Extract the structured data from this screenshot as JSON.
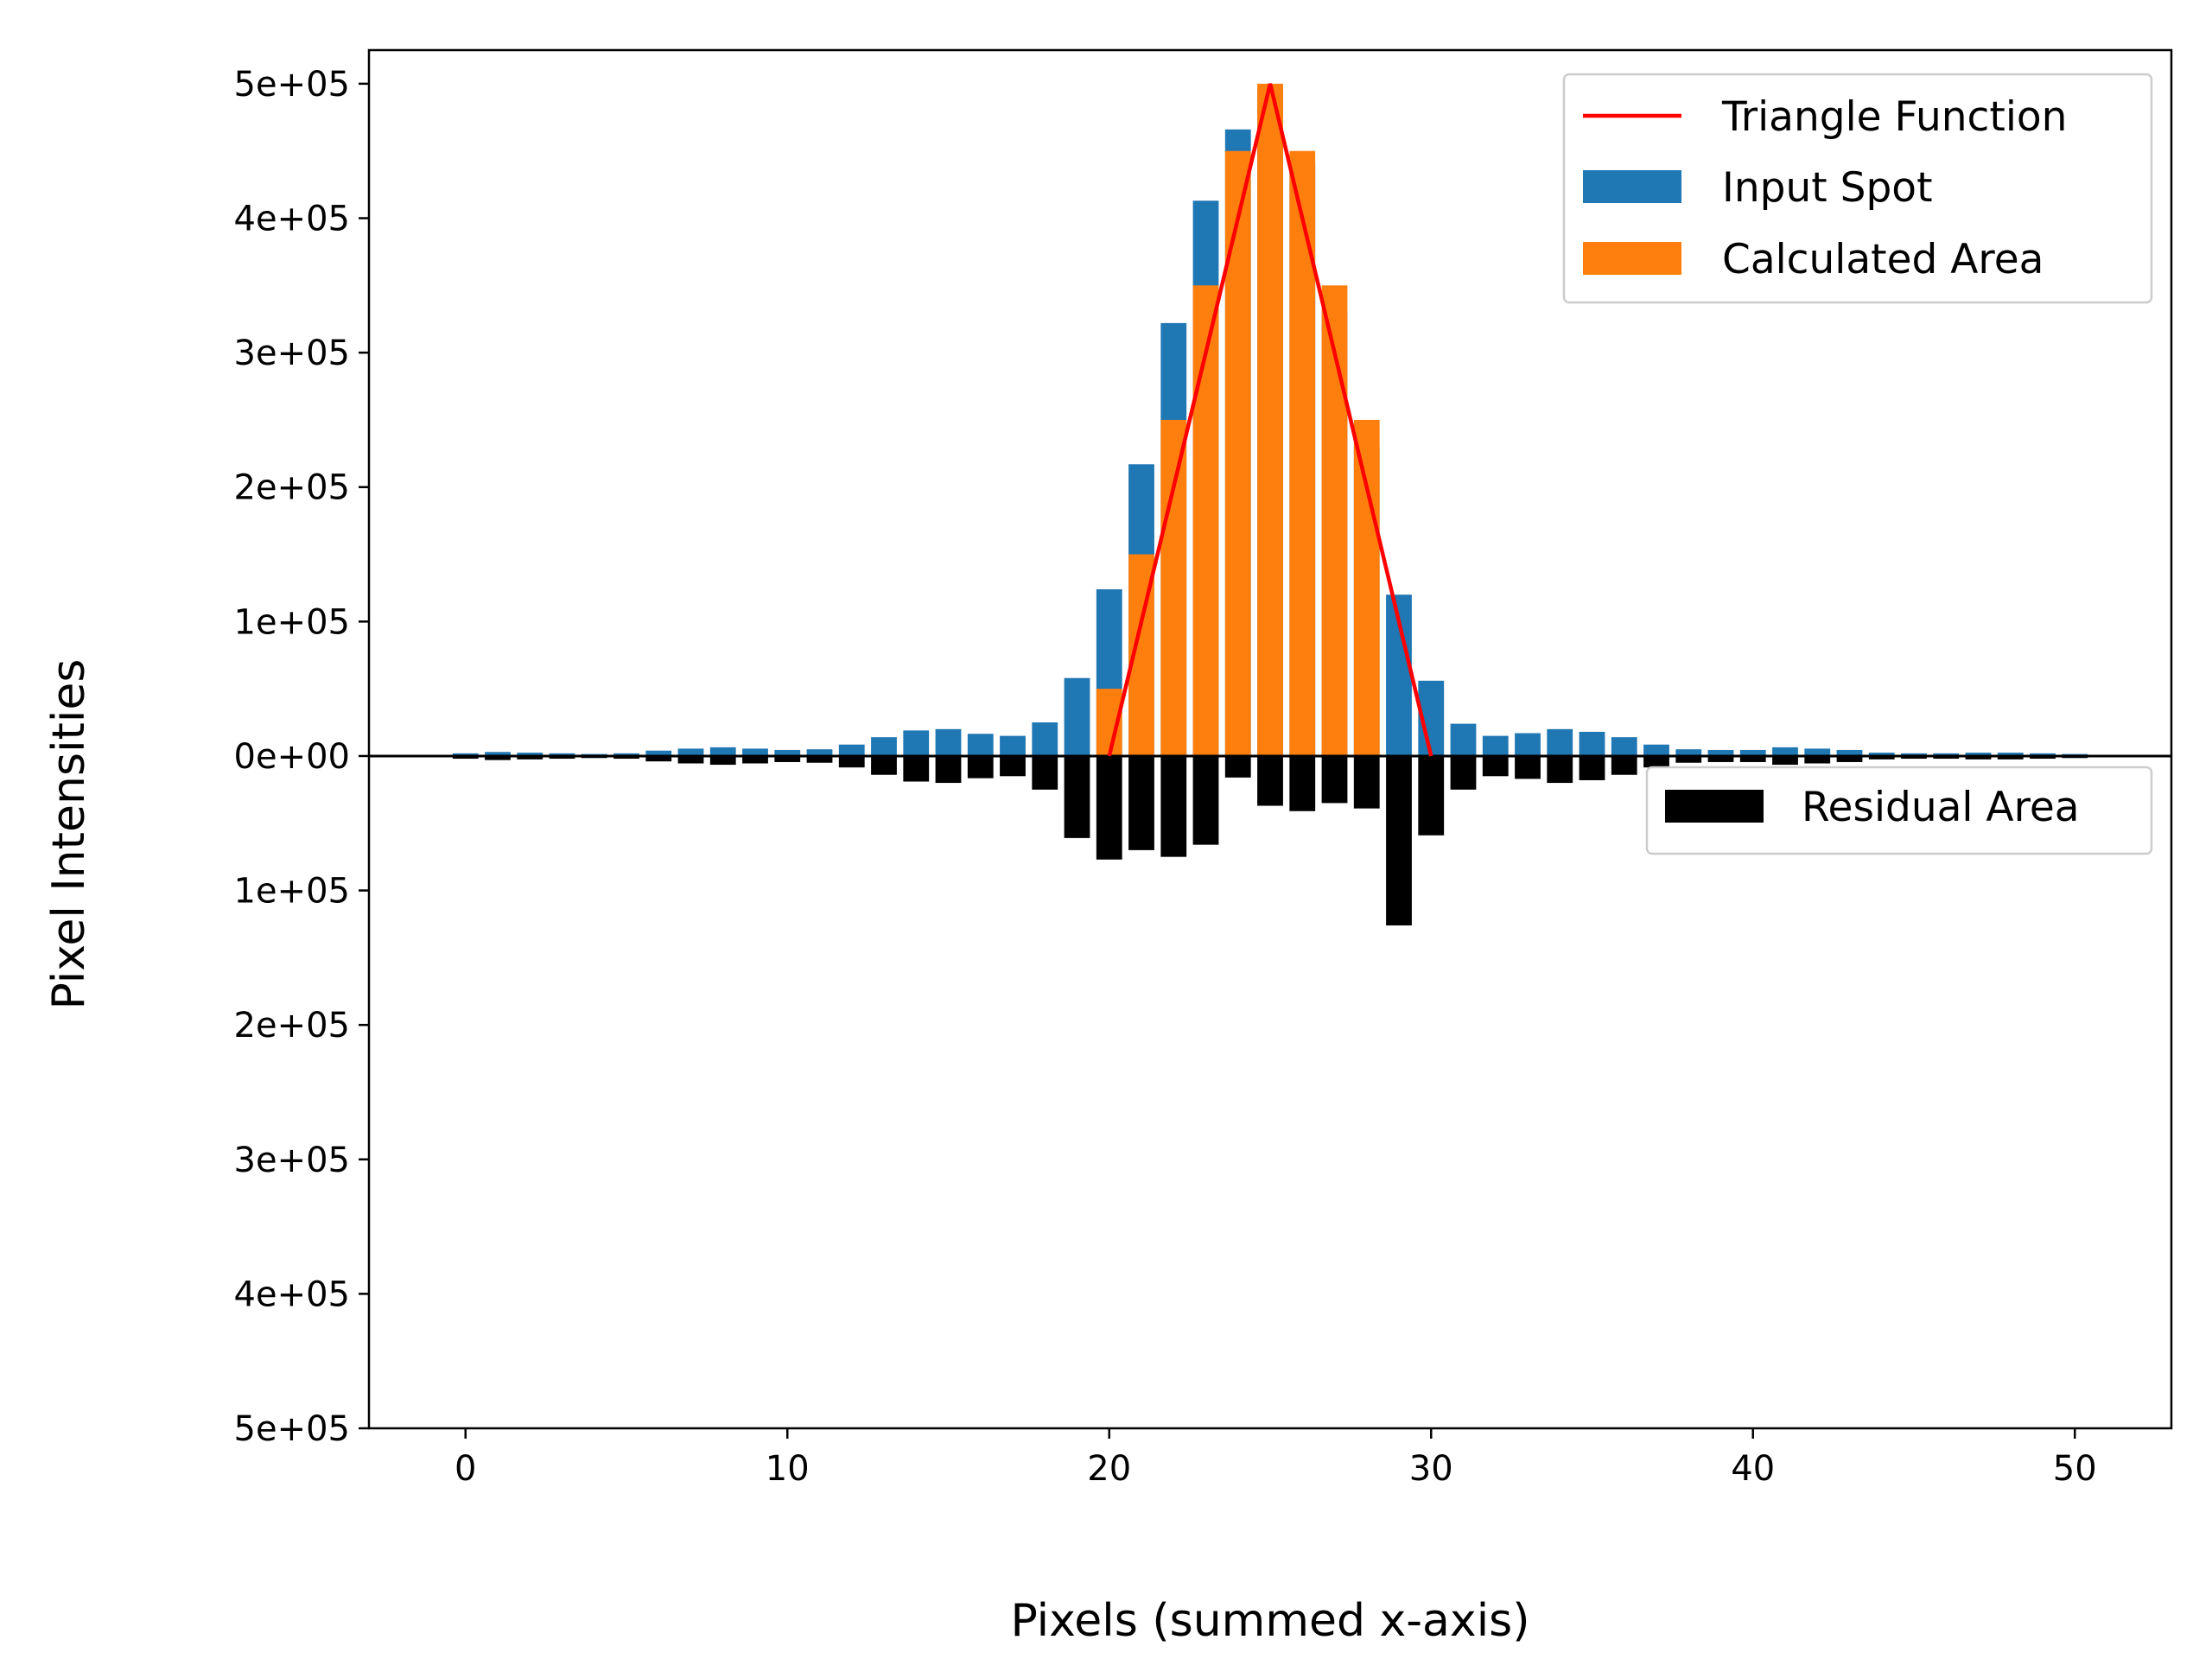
{
  "chart_data": {
    "type": "bar",
    "xlabel": "Pixels (summed x-axis)",
    "ylabel": "Pixel Intensities",
    "xlim": [
      -3,
      53
    ],
    "ylim": [
      -500000,
      525000
    ],
    "x_ticks": [
      0,
      10,
      20,
      30,
      40,
      50
    ],
    "x_tick_labels": [
      "0",
      "10",
      "20",
      "30",
      "40",
      "50"
    ],
    "y_ticks": [
      500000,
      400000,
      300000,
      200000,
      100000,
      0,
      -100000,
      -200000,
      -300000,
      -400000,
      -500000
    ],
    "y_tick_labels": [
      "5e+05",
      "4e+05",
      "3e+05",
      "2e+05",
      "1e+05",
      "0e+00",
      "1e+05",
      "2e+05",
      "3e+05",
      "4e+05",
      "5e+05"
    ],
    "grid": false,
    "zero_line": true,
    "x": [
      0,
      1,
      2,
      3,
      4,
      5,
      6,
      7,
      8,
      9,
      10,
      11,
      12,
      13,
      14,
      15,
      16,
      17,
      18,
      19,
      20,
      21,
      22,
      23,
      24,
      25,
      26,
      27,
      28,
      29,
      30,
      31,
      32,
      33,
      34,
      35,
      36,
      37,
      38,
      39,
      40,
      41,
      42,
      43,
      44,
      45,
      46,
      47,
      48,
      49,
      50
    ],
    "series": [
      {
        "name": "Input Spot",
        "color": "#1f77b4",
        "values": [
          2000,
          3000,
          2500,
          2000,
          1500,
          2000,
          4000,
          5500,
          6500,
          5500,
          4500,
          5000,
          8500,
          14000,
          19000,
          20000,
          16500,
          15000,
          25000,
          58000,
          124000,
          217000,
          322000,
          413000,
          466000,
          497000,
          440000,
          330000,
          230000,
          120000,
          56000,
          24000,
          15000,
          17000,
          20000,
          18000,
          14000,
          8500,
          5000,
          4500,
          4500,
          6500,
          5500,
          4500,
          2500,
          2000,
          2000,
          2500,
          2500,
          2000,
          1500
        ]
      },
      {
        "name": "Calculated Area",
        "color": "#ff7f0e",
        "values": [
          0,
          0,
          0,
          0,
          0,
          0,
          0,
          0,
          0,
          0,
          0,
          0,
          0,
          0,
          0,
          0,
          0,
          0,
          0,
          0,
          50000,
          150000,
          250000,
          350000,
          450000,
          500000,
          450000,
          350000,
          250000,
          0,
          0,
          0,
          0,
          0,
          0,
          0,
          0,
          0,
          0,
          0,
          0,
          0,
          0,
          0,
          0,
          0,
          0,
          0,
          0,
          0,
          0
        ]
      },
      {
        "name": "Residual Area",
        "color": "#000000",
        "values": [
          -2000,
          -3000,
          -2500,
          -2000,
          -1500,
          -2000,
          -4000,
          -5500,
          -6500,
          -5500,
          -4500,
          -5000,
          -8500,
          -14000,
          -19000,
          -20000,
          -16500,
          -15000,
          -25000,
          -61000,
          -77000,
          -70000,
          -75000,
          -66000,
          -16000,
          -37000,
          -41000,
          -35000,
          -39000,
          -126000,
          -59000,
          -25000,
          -15000,
          -17000,
          -20000,
          -18000,
          -14000,
          -8500,
          -5000,
          -4500,
          -4500,
          -6500,
          -5500,
          -4500,
          -2500,
          -2000,
          -2000,
          -2500,
          -2500,
          -2000,
          -1500
        ]
      }
    ],
    "line": {
      "name": "Triangle Function",
      "color": "#ff0000",
      "x": [
        20,
        25,
        30
      ],
      "y": [
        0,
        500000,
        0
      ]
    },
    "legend_upper": {
      "placement": "upper-right",
      "entries": [
        "Triangle Function",
        "Input Spot",
        "Calculated Area"
      ]
    },
    "legend_lower": {
      "placement": "right, below zero line",
      "entries": [
        "Residual Area"
      ]
    }
  }
}
